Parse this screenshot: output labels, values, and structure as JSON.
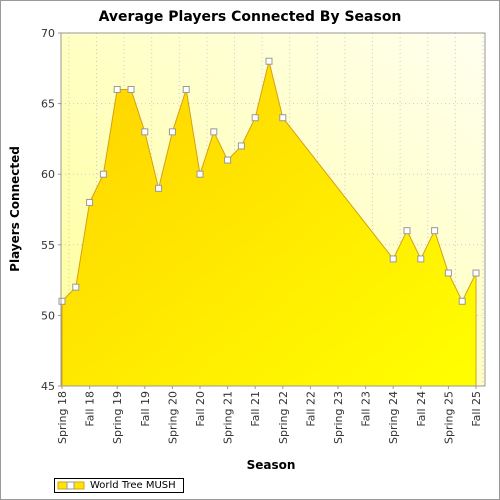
{
  "chart_data": {
    "type": "area",
    "title": "Average Players Connected By Season",
    "xlabel": "Season",
    "ylabel": "Players Connected",
    "ylim": [
      45,
      70
    ],
    "yticks": [
      45,
      50,
      55,
      60,
      65,
      70
    ],
    "grid": true,
    "legend_placement": "bottom-left",
    "categories": [
      "Spring 18",
      "Fall 18",
      "Spring 19",
      "Fall 19",
      "Spring 20",
      "Fall 20",
      "Spring 21",
      "Fall 21",
      "Spring 22",
      "Fall 22",
      "Spring 23",
      "Fall 23",
      "Spring 24",
      "Fall 24",
      "Spring 25",
      "Fall 25"
    ],
    "series": [
      {
        "name": "World Tree MUSH",
        "color": "#ffe600",
        "points": [
          {
            "x": "Spring 18",
            "y": 51
          },
          {
            "x": "Spring 18 b",
            "y": 52
          },
          {
            "x": "Fall 18",
            "y": 58
          },
          {
            "x": "Fall 18 b",
            "y": 60
          },
          {
            "x": "Spring 19",
            "y": 66
          },
          {
            "x": "Spring 19 b",
            "y": 66
          },
          {
            "x": "Fall 19",
            "y": 63
          },
          {
            "x": "Fall 19 b",
            "y": 59
          },
          {
            "x": "Spring 20",
            "y": 63
          },
          {
            "x": "Spring 20 b",
            "y": 66
          },
          {
            "x": "Fall 20",
            "y": 60
          },
          {
            "x": "Fall 20 b",
            "y": 63
          },
          {
            "x": "Spring 21",
            "y": 61
          },
          {
            "x": "Spring 21 b",
            "y": 62
          },
          {
            "x": "Fall 21",
            "y": 64
          },
          {
            "x": "Fall 21 b",
            "y": 68
          },
          {
            "x": "Spring 22",
            "y": 64
          },
          {
            "x": "Spring 24",
            "y": 54
          },
          {
            "x": "Spring 24 b",
            "y": 56
          },
          {
            "x": "Fall 24",
            "y": 54
          },
          {
            "x": "Fall 24 b",
            "y": 56
          },
          {
            "x": "Spring 25",
            "y": 53
          },
          {
            "x": "Spring 25 b",
            "y": 51
          },
          {
            "x": "Fall 25",
            "y": 53
          }
        ]
      }
    ]
  }
}
